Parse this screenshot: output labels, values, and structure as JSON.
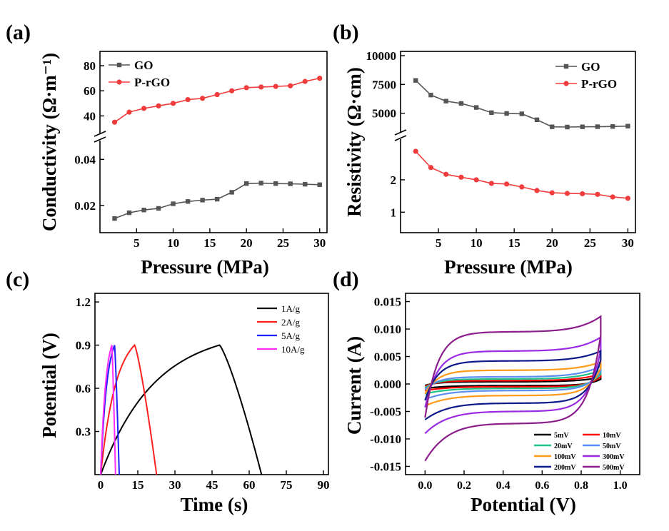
{
  "panels": [
    {
      "id": "a",
      "letter": "(a)",
      "xlabel": "Pressure (MPa)",
      "ylabel": "Conductivity (Ω·m⁻¹)",
      "legend_placement": "top-left"
    },
    {
      "id": "b",
      "letter": "(b)",
      "xlabel": "Pressure (MPa)",
      "ylabel": "Resistivity (Ω·cm)",
      "legend_placement": "top-right"
    },
    {
      "id": "c",
      "letter": "(c)",
      "xlabel": "Time (s)",
      "ylabel": "Potential (V)",
      "legend_placement": "top-right"
    },
    {
      "id": "d",
      "letter": "(d)",
      "xlabel": "Potential (V)",
      "ylabel": "Current (A)",
      "legend_placement": "bottom-right"
    }
  ],
  "chart_data": [
    {
      "panel": "a",
      "type": "line",
      "xlim": [
        0,
        31
      ],
      "xticks": [
        5,
        10,
        15,
        20,
        25,
        30
      ],
      "broken_y_axis": true,
      "upper_ylim": [
        30,
        88
      ],
      "upper_yticks": [
        40,
        60,
        80
      ],
      "lower_ylim": [
        0.01,
        0.046
      ],
      "lower_yticks": [
        0.02,
        0.04
      ],
      "series": [
        {
          "name": "GO",
          "color": "#555555",
          "marker": "square",
          "segment": "lower",
          "x": [
            2,
            4,
            6,
            8,
            10,
            12,
            14,
            16,
            18,
            20,
            22,
            24,
            26,
            28,
            30
          ],
          "y": [
            0.0143,
            0.0168,
            0.018,
            0.0187,
            0.0207,
            0.0217,
            0.0223,
            0.0227,
            0.0257,
            0.0295,
            0.0297,
            0.0295,
            0.0294,
            0.0292,
            0.029
          ]
        },
        {
          "name": "P-rGO",
          "color": "#f03c3c",
          "marker": "circle",
          "segment": "upper",
          "x": [
            2,
            4,
            6,
            8,
            10,
            12,
            14,
            16,
            18,
            20,
            22,
            24,
            26,
            28,
            30
          ],
          "y": [
            35,
            43,
            46,
            48,
            50,
            53,
            54,
            57,
            60,
            62.5,
            63,
            63.5,
            64,
            67.5,
            70
          ]
        }
      ]
    },
    {
      "panel": "b",
      "type": "line",
      "xlim": [
        0,
        31
      ],
      "xticks": [
        5,
        10,
        15,
        20,
        25,
        30
      ],
      "broken_y_axis": true,
      "upper_ylim": [
        3800,
        10000
      ],
      "upper_yticks": [
        5000,
        7500,
        10000
      ],
      "lower_ylim": [
        0.5,
        3.1
      ],
      "lower_yticks": [
        1,
        2
      ],
      "series": [
        {
          "name": "GO",
          "color": "#555555",
          "marker": "square",
          "segment": "upper",
          "x": [
            2,
            4,
            6,
            8,
            10,
            12,
            14,
            16,
            18,
            20,
            22,
            24,
            26,
            28,
            30
          ],
          "y": [
            7850,
            6580,
            6050,
            5850,
            5500,
            5050,
            4980,
            4950,
            4430,
            3820,
            3800,
            3820,
            3830,
            3850,
            3880
          ]
        },
        {
          "name": "P-rGO",
          "color": "#f03c3c",
          "marker": "circle",
          "segment": "lower",
          "x": [
            2,
            4,
            6,
            8,
            10,
            12,
            14,
            16,
            18,
            20,
            22,
            24,
            26,
            28,
            30
          ],
          "y": [
            2.88,
            2.38,
            2.17,
            2.08,
            2.0,
            1.89,
            1.87,
            1.78,
            1.67,
            1.6,
            1.58,
            1.57,
            1.55,
            1.47,
            1.43
          ]
        }
      ]
    },
    {
      "panel": "c",
      "type": "line",
      "xlim": [
        0,
        90
      ],
      "xticks": [
        0,
        15,
        30,
        45,
        60,
        75,
        90
      ],
      "ylim": [
        0,
        1.26
      ],
      "yticks": [
        0.3,
        0.6,
        0.9,
        1.2
      ],
      "series": [
        {
          "name": "1A/g",
          "color": "#000000",
          "charge_end": 48,
          "discharge_end": 65,
          "vmax": 0.9
        },
        {
          "name": "2A/g",
          "color": "#ff1f1f",
          "charge_end": 13.7,
          "discharge_end": 22.6,
          "vmax": 0.9
        },
        {
          "name": "5A/g",
          "color": "#1f1fff",
          "charge_end": 5.6,
          "discharge_end": 7.5,
          "vmax": 0.9
        },
        {
          "name": "10A/g",
          "color": "#ff2bff",
          "charge_end": 4.5,
          "discharge_end": 6.0,
          "vmax": 0.9
        }
      ]
    },
    {
      "panel": "d",
      "type": "line",
      "xlim": [
        -0.1,
        1.1
      ],
      "xticks": [
        0.0,
        0.2,
        0.4,
        0.6,
        0.8,
        1.0
      ],
      "ylim": [
        -0.0165,
        0.0165
      ],
      "yticks": [
        -0.015,
        -0.01,
        -0.005,
        0.0,
        0.005,
        0.01,
        0.015
      ],
      "series": [
        {
          "name": "5mV",
          "color": "#000000",
          "y_top": 0.0004,
          "y_bot": -0.0003,
          "y_peak": 0.0012,
          "y_dip": -0.0008
        },
        {
          "name": "10mV",
          "color": "#ff0000",
          "y_top": 0.0006,
          "y_bot": -0.0005,
          "y_peak": 0.0018,
          "y_dip": -0.0012
        },
        {
          "name": "20mV",
          "color": "#22c38a",
          "y_top": 0.0009,
          "y_bot": -0.0008,
          "y_peak": 0.0025,
          "y_dip": -0.0018
        },
        {
          "name": "50mV",
          "color": "#5b8cf0",
          "y_top": 0.0013,
          "y_bot": -0.0012,
          "y_peak": 0.0032,
          "y_dip": -0.0028
        },
        {
          "name": "100mV",
          "color": "#ff9a1a",
          "y_top": 0.0025,
          "y_bot": -0.0021,
          "y_peak": 0.004,
          "y_dip": -0.004
        },
        {
          "name": "300mV",
          "color": "#9a2be2",
          "y_top": 0.006,
          "y_bot": -0.005,
          "y_peak": 0.0085,
          "y_dip": -0.009
        },
        {
          "name": "200mV",
          "color": "#0d1a8a",
          "y_top": 0.0042,
          "y_bot": -0.0035,
          "y_peak": 0.006,
          "y_dip": -0.0065
        },
        {
          "name": "500mV",
          "color": "#8b1e8b",
          "y_top": 0.0095,
          "y_bot": -0.0072,
          "y_peak": 0.0123,
          "y_dip": -0.014
        }
      ]
    }
  ]
}
